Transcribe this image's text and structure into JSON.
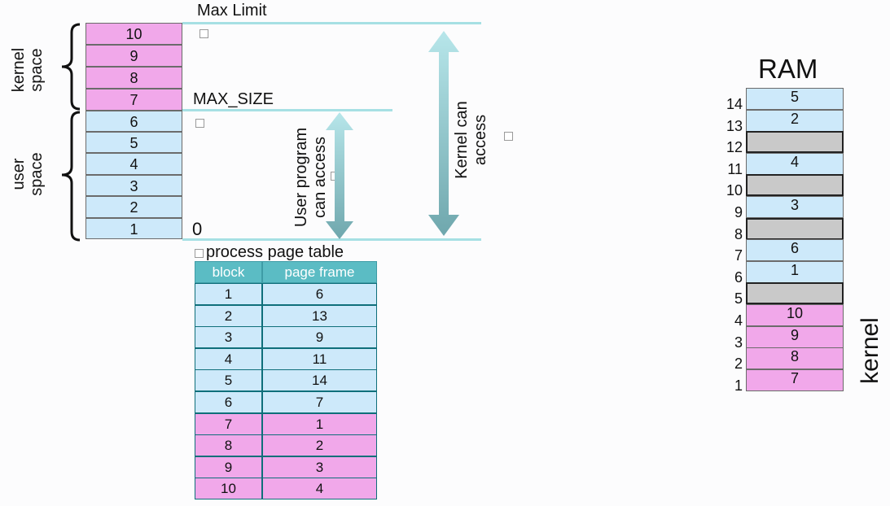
{
  "labels": {
    "max_limit": "Max Limit",
    "max_size": "MAX_SIZE",
    "zero": "0",
    "kernel_space": [
      "kernel",
      "space"
    ],
    "user_space": [
      "user",
      "space"
    ],
    "user_access": [
      "User program",
      "can access"
    ],
    "kernel_access": [
      "Kernel can",
      "access"
    ],
    "ram": "RAM",
    "kernel": "kernel",
    "pt_caption": "process page table"
  },
  "address_space": [
    "10",
    "9",
    "8",
    "7",
    "6",
    "5",
    "4",
    "3",
    "2",
    "1"
  ],
  "page_table": {
    "headers": [
      "block",
      "page frame"
    ],
    "rows": [
      [
        "1",
        "6"
      ],
      [
        "2",
        "13"
      ],
      [
        "3",
        "9"
      ],
      [
        "4",
        "11"
      ],
      [
        "5",
        "14"
      ],
      [
        "6",
        "7"
      ],
      [
        "7",
        "1"
      ],
      [
        "8",
        "2"
      ],
      [
        "9",
        "3"
      ],
      [
        "10",
        "4"
      ]
    ]
  },
  "ram": {
    "frames": [
      {
        "frame": "14",
        "content": "5",
        "kind": "user"
      },
      {
        "frame": "13",
        "content": "2",
        "kind": "user"
      },
      {
        "frame": "12",
        "content": "",
        "kind": "free"
      },
      {
        "frame": "11",
        "content": "4",
        "kind": "user"
      },
      {
        "frame": "10",
        "content": "",
        "kind": "free"
      },
      {
        "frame": "9",
        "content": "3",
        "kind": "user"
      },
      {
        "frame": "8",
        "content": "",
        "kind": "free"
      },
      {
        "frame": "7",
        "content": "6",
        "kind": "user"
      },
      {
        "frame": "6",
        "content": "1",
        "kind": "user"
      },
      {
        "frame": "5",
        "content": "",
        "kind": "free"
      },
      {
        "frame": "4",
        "content": "10",
        "kind": "kernel"
      },
      {
        "frame": "3",
        "content": "9",
        "kind": "kernel"
      },
      {
        "frame": "2",
        "content": "8",
        "kind": "kernel"
      },
      {
        "frame": "1",
        "content": "7",
        "kind": "kernel"
      }
    ]
  },
  "colors": {
    "user": "#cde9fa",
    "kernel": "#f1a8ea",
    "free": "#c9c9c9",
    "arrow": "#8fcfd4",
    "table_header": "#5bbcc4"
  }
}
